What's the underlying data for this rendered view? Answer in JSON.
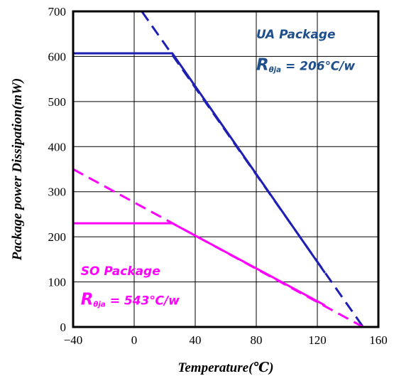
{
  "chart_data": {
    "type": "line",
    "xlabel": "Temperature(℃)",
    "ylabel": "Package power Dissipation(mW)",
    "xlim": [
      -40,
      160
    ],
    "ylim": [
      0,
      700
    ],
    "x_ticks": [
      -40,
      0,
      40,
      80,
      120,
      160
    ],
    "y_ticks": [
      0,
      100,
      200,
      300,
      400,
      500,
      600,
      700
    ],
    "x_tick_labels": [
      "−40",
      "0",
      "40",
      "80",
      "120",
      "160"
    ],
    "y_tick_labels": [
      "0",
      "100",
      "200",
      "300",
      "400",
      "500",
      "600",
      "700"
    ],
    "grid": true,
    "series": [
      {
        "color": "#1f1fb4",
        "solid": [
          [
            -40,
            607
          ],
          [
            25,
            607
          ],
          [
            125,
            120
          ]
        ],
        "dashed": [
          [
            5,
            700
          ],
          [
            150,
            0
          ]
        ]
      },
      {
        "color": "#ff00ff",
        "solid": [
          [
            -40,
            230
          ],
          [
            25,
            230
          ],
          [
            125,
            48
          ]
        ],
        "dashed": [
          [
            -40,
            350
          ],
          [
            150,
            0
          ]
        ]
      }
    ],
    "annotations": [
      {
        "id": "ua-title",
        "text": "UA Package",
        "color": "#1f4e8c",
        "x": 80,
        "y": 640,
        "size": 17
      },
      {
        "id": "ua-rth",
        "main": "R",
        "sub": "θja",
        "rest": " = 206℃/w",
        "color": "#1f4e8c",
        "x": 80,
        "y": 570,
        "size": 17
      },
      {
        "id": "so-title",
        "text": "SO Package",
        "color": "#ff00ff",
        "x": -35,
        "y": 115,
        "size": 17
      },
      {
        "id": "so-rth",
        "main": "R",
        "sub": "θja",
        "rest": " = 543℃/w",
        "color": "#ff00ff",
        "x": -35,
        "y": 50,
        "size": 17
      }
    ]
  }
}
